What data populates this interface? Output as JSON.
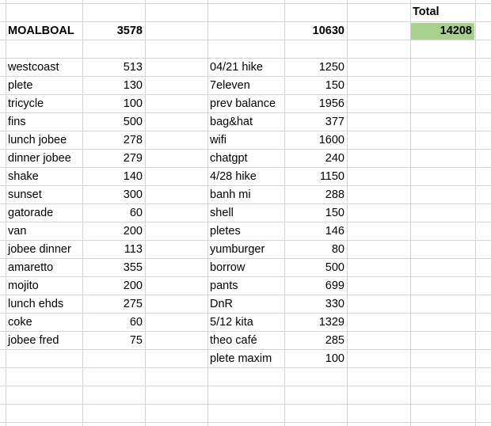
{
  "total_label": "Total",
  "summary": {
    "name": "MOALBOAL",
    "left_sum": "3578",
    "right_sum": "10630",
    "grand_total": "14208"
  },
  "colors": {
    "total_fill": "#a9d18e",
    "gridline": "#d4d4d4"
  },
  "left_items": [
    {
      "label": "westcoast",
      "value": "513"
    },
    {
      "label": "plete",
      "value": "130"
    },
    {
      "label": "tricycle",
      "value": "100"
    },
    {
      "label": "fins",
      "value": "500"
    },
    {
      "label": "lunch jobee",
      "value": "278"
    },
    {
      "label": "dinner jobee",
      "value": "279"
    },
    {
      "label": "shake",
      "value": "140"
    },
    {
      "label": "sunset",
      "value": "300"
    },
    {
      "label": "gatorade",
      "value": "60"
    },
    {
      "label": "van",
      "value": "200"
    },
    {
      "label": "jobee dinner",
      "value": "113"
    },
    {
      "label": "amaretto",
      "value": "355"
    },
    {
      "label": "mojito",
      "value": "200"
    },
    {
      "label": "lunch ehds",
      "value": "275"
    },
    {
      "label": "coke",
      "value": "60"
    },
    {
      "label": "jobee fred",
      "value": "75"
    }
  ],
  "right_items": [
    {
      "label": "04/21 hike",
      "value": "1250"
    },
    {
      "label": "7eleven",
      "value": "150"
    },
    {
      "label": "prev balance",
      "value": "1956"
    },
    {
      "label": "bag&hat",
      "value": "377"
    },
    {
      "label": "wifi",
      "value": "1600"
    },
    {
      "label": "chatgpt",
      "value": "240"
    },
    {
      "label": "4/28 hike",
      "value": "1150"
    },
    {
      "label": "banh mi",
      "value": "288"
    },
    {
      "label": "shell",
      "value": "150"
    },
    {
      "label": "pletes",
      "value": "146"
    },
    {
      "label": "yumburger",
      "value": "80"
    },
    {
      "label": "borrow",
      "value": "500"
    },
    {
      "label": "pants",
      "value": "699"
    },
    {
      "label": "DnR",
      "value": "330"
    },
    {
      "label": "5/12 kita",
      "value": "1329"
    },
    {
      "label": "theo café",
      "value": "285"
    },
    {
      "label": "plete maxim",
      "value": "100"
    }
  ]
}
